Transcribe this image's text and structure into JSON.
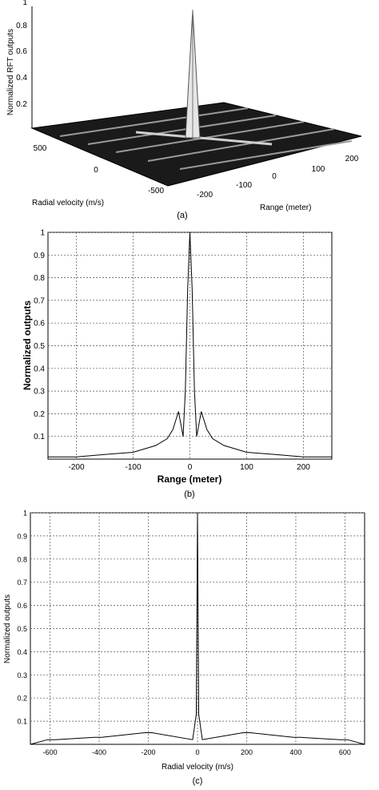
{
  "chart_data": [
    {
      "type": "surface",
      "caption": "(a)",
      "zlabel": "Normalized RFT outputs",
      "xlabel": "Radial velocity (m/s)",
      "ylabel": "Range (meter)",
      "z_ticks": [
        "0.2",
        "0.4",
        "0.6",
        "0.8",
        "1"
      ],
      "x_ticks": [
        "500",
        "0",
        "-500"
      ],
      "y_ticks": [
        "-200",
        "-100",
        "0",
        "100",
        "200"
      ],
      "zlim": [
        0,
        1
      ],
      "peak": {
        "x": 0,
        "y": 0,
        "z": 1.0
      }
    },
    {
      "type": "line",
      "caption": "(b)",
      "xlabel": "Range (meter)",
      "ylabel": "Normalized outputs",
      "xlim": [
        -250,
        250
      ],
      "ylim": [
        0,
        1
      ],
      "x_ticks": [
        "-200",
        "-100",
        "0",
        "100",
        "200"
      ],
      "y_ticks": [
        "0.1",
        "0.2",
        "0.3",
        "0.4",
        "0.5",
        "0.6",
        "0.7",
        "0.8",
        "0.9",
        "1"
      ],
      "grid": true,
      "series": [
        {
          "x": [
            -250,
            -200,
            -150,
            -100,
            -60,
            -40,
            -30,
            -20,
            -12,
            -8,
            -4,
            0,
            4,
            8,
            12,
            20,
            30,
            40,
            60,
            100,
            150,
            200,
            250
          ],
          "y": [
            0.01,
            0.01,
            0.02,
            0.03,
            0.06,
            0.09,
            0.13,
            0.21,
            0.1,
            0.3,
            0.75,
            1.0,
            0.75,
            0.3,
            0.1,
            0.21,
            0.13,
            0.09,
            0.06,
            0.03,
            0.02,
            0.01,
            0.01
          ]
        }
      ]
    },
    {
      "type": "line",
      "caption": "(c)",
      "xlabel": "Radial velocity (m/s)",
      "ylabel": "Normalized outputs",
      "xlim": [
        -680,
        680
      ],
      "ylim": [
        0,
        1
      ],
      "x_ticks": [
        "-600",
        "-400",
        "-200",
        "0",
        "200",
        "400",
        "600"
      ],
      "y_ticks": [
        "0.1",
        "0.2",
        "0.3",
        "0.4",
        "0.5",
        "0.6",
        "0.7",
        "0.8",
        "0.9",
        "1"
      ],
      "grid": true,
      "series": [
        {
          "x": [
            -680,
            -610,
            -580,
            -420,
            -390,
            -215,
            -200,
            -185,
            -20,
            -5,
            0,
            5,
            20,
            185,
            200,
            215,
            390,
            420,
            580,
            610,
            680
          ],
          "y": [
            0.0,
            0.02,
            0.02,
            0.03,
            0.03,
            0.05,
            0.05,
            0.05,
            0.02,
            0.13,
            1.0,
            0.13,
            0.02,
            0.05,
            0.05,
            0.05,
            0.03,
            0.03,
            0.02,
            0.02,
            0.0
          ]
        }
      ]
    }
  ]
}
